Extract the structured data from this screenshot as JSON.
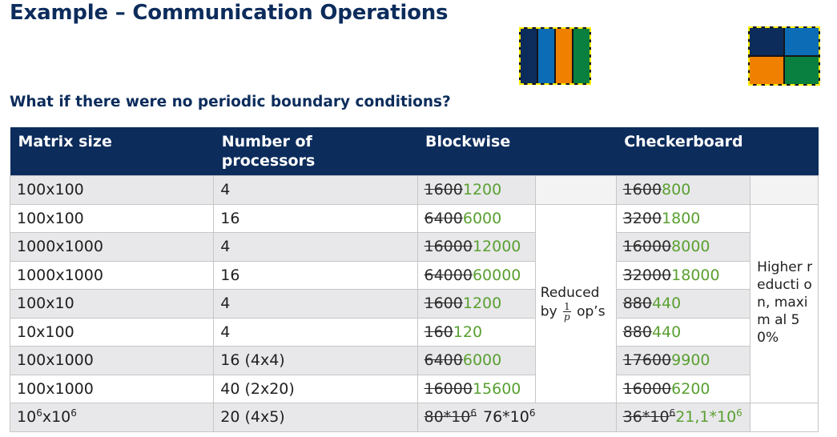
{
  "title": "Example – Communication Operations",
  "subtitle": "What if there were no periodic boundary conditions?",
  "pictograms": {
    "blockwise_colors": [
      "#0c2c5c",
      "#0c6cb6",
      "#f08000",
      "#0a8040"
    ],
    "checkerboard_colors": [
      "#0c2c5c",
      "#0c6cb6",
      "#f08000",
      "#0a8040"
    ],
    "border_color": "#ffee00"
  },
  "colors": {
    "header_bg": "#0c2c5c",
    "new_value": "#5aa032",
    "row_shade": "#e8e8ea"
  },
  "table": {
    "headers": {
      "matrix_size": "Matrix size",
      "processors_line1": "Number of",
      "processors_line2": "processors",
      "blockwise": "Blockwise",
      "checkerboard": "Checkerboard"
    },
    "rows": [
      {
        "matrix": "100x100",
        "procs": "4",
        "block_old": "1600",
        "block_new": "1200",
        "check_old": "1600",
        "check_new": "800"
      },
      {
        "matrix": "100x100",
        "procs": "16",
        "block_old": "6400",
        "block_new": "6000",
        "check_old": "3200",
        "check_new": "1800"
      },
      {
        "matrix": "1000x1000",
        "procs": "4",
        "block_old": "16000",
        "block_new": "12000",
        "check_old": "16000",
        "check_new": "8000"
      },
      {
        "matrix": "1000x1000",
        "procs": "16",
        "block_old": "64000",
        "block_new": "60000",
        "check_old": "32000",
        "check_new": "18000"
      },
      {
        "matrix": "100x10",
        "procs": "4",
        "block_old": "1600",
        "block_new": "1200",
        "check_old": "880",
        "check_new": "440"
      },
      {
        "matrix": "10x100",
        "procs": "4",
        "block_old": "160",
        "block_new": "120",
        "check_old": "880",
        "check_new": "440"
      },
      {
        "matrix": "100x1000",
        "procs": "16 (4x4)",
        "block_old": "6400",
        "block_new": "6000",
        "check_old": "17600",
        "check_new": "9900"
      },
      {
        "matrix": "100x1000",
        "procs": "40 (2x20)",
        "block_old": "16000",
        "block_new": "15600",
        "check_old": "16000",
        "check_new": "6200"
      }
    ],
    "last_row": {
      "matrix_base1": "10",
      "matrix_exp1": "6",
      "matrix_x": "x",
      "matrix_base2": "10",
      "matrix_exp2": "6",
      "procs": "20 (4x5)",
      "block_old_base": "80*10",
      "block_old_exp": "6",
      "block_new_base": "76*10",
      "block_new_exp": "6",
      "check_old_base": "36*10",
      "check_old_exp": "6",
      "check_new_base": "21,1*10",
      "check_new_exp": "6"
    },
    "blockwise_note": {
      "line1": "Reduced",
      "line2_prefix": "by",
      "frac_num": "1",
      "frac_den": "p",
      "line2_suffix": "op’s"
    },
    "checkerboard_note": "Higher reducti on, maxim al 50%"
  }
}
